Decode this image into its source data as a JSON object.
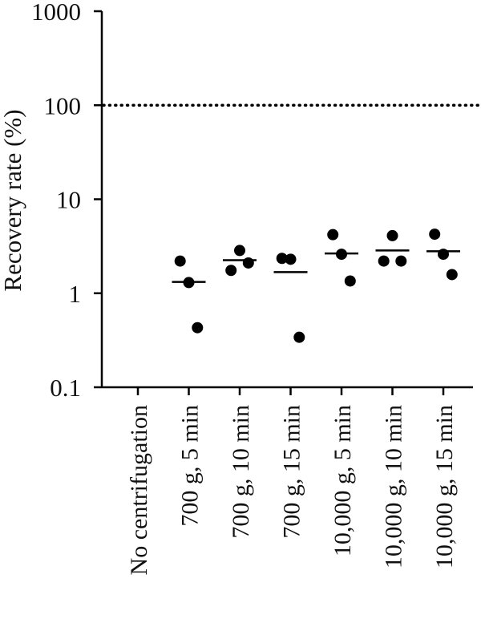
{
  "chart_data": {
    "type": "scatter",
    "title": "",
    "xlabel": "",
    "ylabel": "Recovery rate (%)",
    "yscale": "log",
    "ylim": [
      0.1,
      1000
    ],
    "yticks": [
      {
        "value": 0.1,
        "label": "0.1"
      },
      {
        "value": 1,
        "label": "1"
      },
      {
        "value": 10,
        "label": "10"
      },
      {
        "value": 100,
        "label": "100"
      },
      {
        "value": 1000,
        "label": "1000"
      }
    ],
    "reference_line": {
      "value": 100,
      "style": "dotted"
    },
    "categories": [
      "No centrifugation",
      "700 g, 5 min",
      "700 g, 10 min",
      "700 g, 15 min",
      "10,000 g, 5 min",
      "10,000 g, 10 min",
      "10,000 g, 15 min"
    ],
    "series": [
      {
        "points": []
      },
      {
        "points": [
          2.2,
          1.3,
          0.43
        ],
        "mean": 1.32
      },
      {
        "points": [
          1.75,
          2.85,
          2.1
        ],
        "mean": 2.25
      },
      {
        "points": [
          2.35,
          2.3,
          0.34
        ],
        "mean": 1.68
      },
      {
        "points": [
          4.2,
          2.6,
          1.35
        ],
        "mean": 2.65
      },
      {
        "points": [
          2.2,
          4.1,
          2.2
        ],
        "mean": 2.85
      },
      {
        "points": [
          4.25,
          2.6,
          1.58
        ],
        "mean": 2.8
      }
    ],
    "grid": false,
    "legend": "none",
    "colors": {
      "marker": "#000000",
      "axis": "#000000",
      "text": "#111111"
    }
  }
}
